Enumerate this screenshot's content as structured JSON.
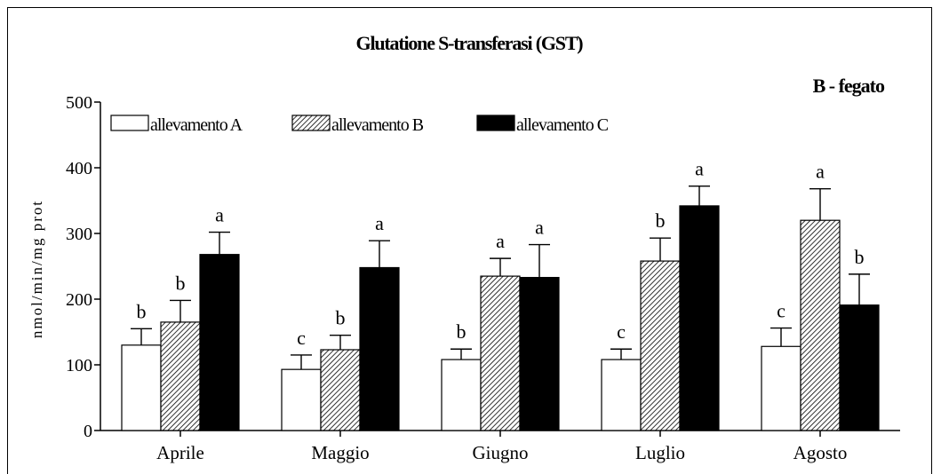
{
  "chart_data": {
    "type": "bar",
    "title": "Glutatione S-transferasi (GST)",
    "subtitle": "B - fegato",
    "ylabel": "nmol/min/mg prot",
    "xlabel": "",
    "ylim": [
      0,
      500
    ],
    "yticks": [
      "0",
      "100",
      "200",
      "300",
      "400",
      "500"
    ],
    "categories": [
      "Aprile",
      "Maggio",
      "Giugno",
      "Luglio",
      "Agosto"
    ],
    "legend_position": "top-left",
    "series": [
      {
        "name": "allevamento A",
        "pattern": "white",
        "values": [
          130,
          93,
          108,
          108,
          128
        ],
        "errors": [
          25,
          22,
          16,
          16,
          28
        ],
        "labels": [
          "b",
          "c",
          "b",
          "c",
          "c"
        ]
      },
      {
        "name": "allevamento B",
        "pattern": "hatched",
        "values": [
          165,
          123,
          235,
          258,
          320
        ],
        "errors": [
          33,
          22,
          27,
          35,
          48
        ],
        "labels": [
          "b",
          "b",
          "a",
          "b",
          "a"
        ]
      },
      {
        "name": "allevamento C",
        "pattern": "black",
        "values": [
          268,
          248,
          233,
          342,
          191
        ],
        "errors": [
          34,
          41,
          50,
          30,
          47
        ],
        "labels": [
          "a",
          "a",
          "a",
          "a",
          "b"
        ]
      }
    ]
  }
}
